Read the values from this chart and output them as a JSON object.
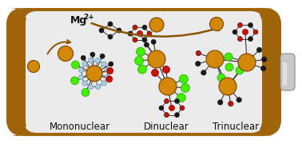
{
  "battery_outer_color": "#A0650A",
  "battery_inner_color": "#EAEAEA",
  "battery_terminal_color": "#BBBBBB",
  "mg_ion_color": "#D4880A",
  "mg_ion_border": "#7A4500",
  "arrow_color": "#8B5500",
  "al_color": "#D4880A",
  "al_border": "#7A4500",
  "bond_color": "#222222",
  "red_color": "#CC1100",
  "green_color": "#44EE00",
  "blue_color": "#AACCDD",
  "dark_color": "#1A1A1A",
  "dark_border": "#000000",
  "label_mononuclear": "Mononuclear",
  "label_dinuclear": "Dinuclear",
  "label_trinuclear": "Trinuclear",
  "font_size_labels": 8.5,
  "font_size_mg": 9
}
